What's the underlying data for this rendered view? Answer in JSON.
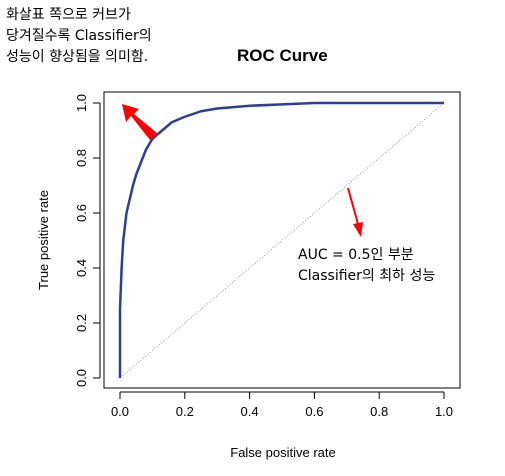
{
  "annotations": {
    "top_lines": [
      "화살표 쪽으로 커브가",
      "당겨질수록 Classifier의",
      "성능이 향상됨을 의미함."
    ],
    "mid_lines": [
      "AUC = 0.5인 부분",
      "Classifier의 최하 성능"
    ]
  },
  "colors": {
    "curve": "#2E3D9B",
    "diagonal": "#9A9A9A",
    "arrow": "#FF0000"
  },
  "chart_data": {
    "type": "line",
    "title": "ROC Curve",
    "xlabel": "False positive rate",
    "ylabel": "True positive rate",
    "xlim": [
      0,
      1
    ],
    "ylim": [
      0,
      1
    ],
    "x_ticks": [
      "0.0",
      "0.2",
      "0.4",
      "0.6",
      "0.8",
      "1.0"
    ],
    "y_ticks": [
      "0.0",
      "0.2",
      "0.4",
      "0.6",
      "0.8",
      "1.0"
    ],
    "grid": false,
    "series": [
      {
        "x": [
          0,
          0,
          0.005,
          0.01,
          0.015,
          0.02,
          0.03,
          0.04,
          0.05,
          0.06,
          0.07,
          0.08,
          0.09,
          0.1,
          0.12,
          0.14,
          0.16,
          0.2,
          0.25,
          0.3,
          0.4,
          0.5,
          0.6,
          0.8,
          1.0
        ],
        "y": [
          0,
          0.25,
          0.4,
          0.5,
          0.55,
          0.6,
          0.65,
          0.7,
          0.74,
          0.77,
          0.8,
          0.83,
          0.85,
          0.87,
          0.89,
          0.91,
          0.93,
          0.95,
          0.97,
          0.98,
          0.99,
          0.995,
          1.0,
          1.0,
          1.0
        ]
      },
      {
        "x": [
          0,
          1
        ],
        "y": [
          0,
          1
        ]
      }
    ]
  }
}
